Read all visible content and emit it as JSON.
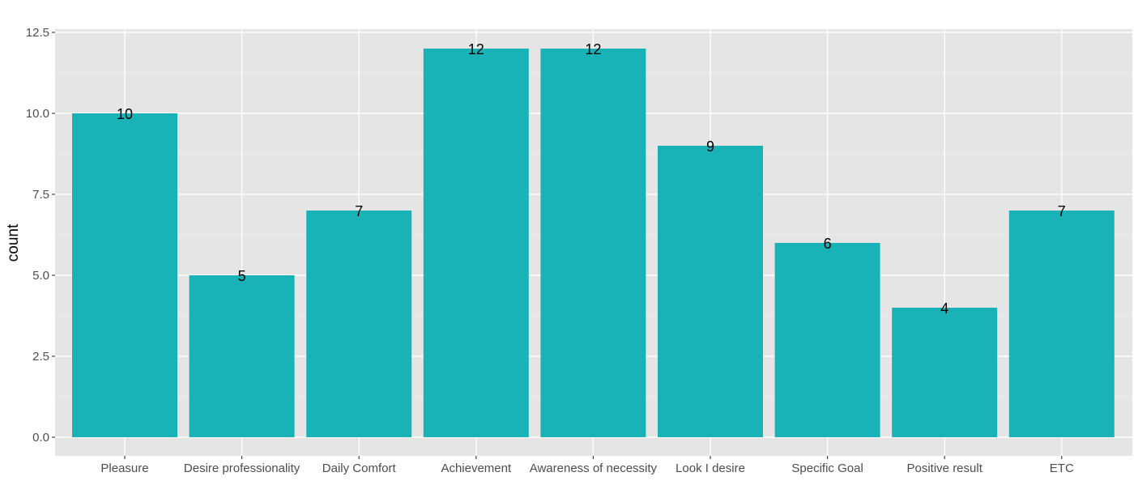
{
  "chart_data": {
    "type": "bar",
    "title": "",
    "xlabel": "",
    "ylabel": "count",
    "categories": [
      "Pleasure",
      "Desire professionality",
      "Daily Comfort",
      "Achievement",
      "Awareness of necessity",
      "Look I desire",
      "Specific Goal",
      "Positive result",
      "ETC"
    ],
    "values": [
      10,
      5,
      7,
      12,
      12,
      9,
      6,
      4,
      7
    ],
    "ylim": [
      0,
      12.5
    ],
    "yticks": [
      0,
      2.5,
      5,
      7.5,
      10,
      12.5
    ],
    "ytick_labels": [
      "0.0",
      "2.5",
      "5.0",
      "7.5",
      "10.0",
      "12.5"
    ],
    "data_labels": [
      "10",
      "5",
      "7",
      "12",
      "12",
      "9",
      "6",
      "4",
      "7"
    ],
    "grid": true,
    "legend": "none",
    "colors": {
      "bar": "#19B2B7",
      "panel": "#E5E5E5",
      "grid_major": "#FFFFFF",
      "grid_minor": "#F2F2F2",
      "tick": "#333333"
    }
  }
}
